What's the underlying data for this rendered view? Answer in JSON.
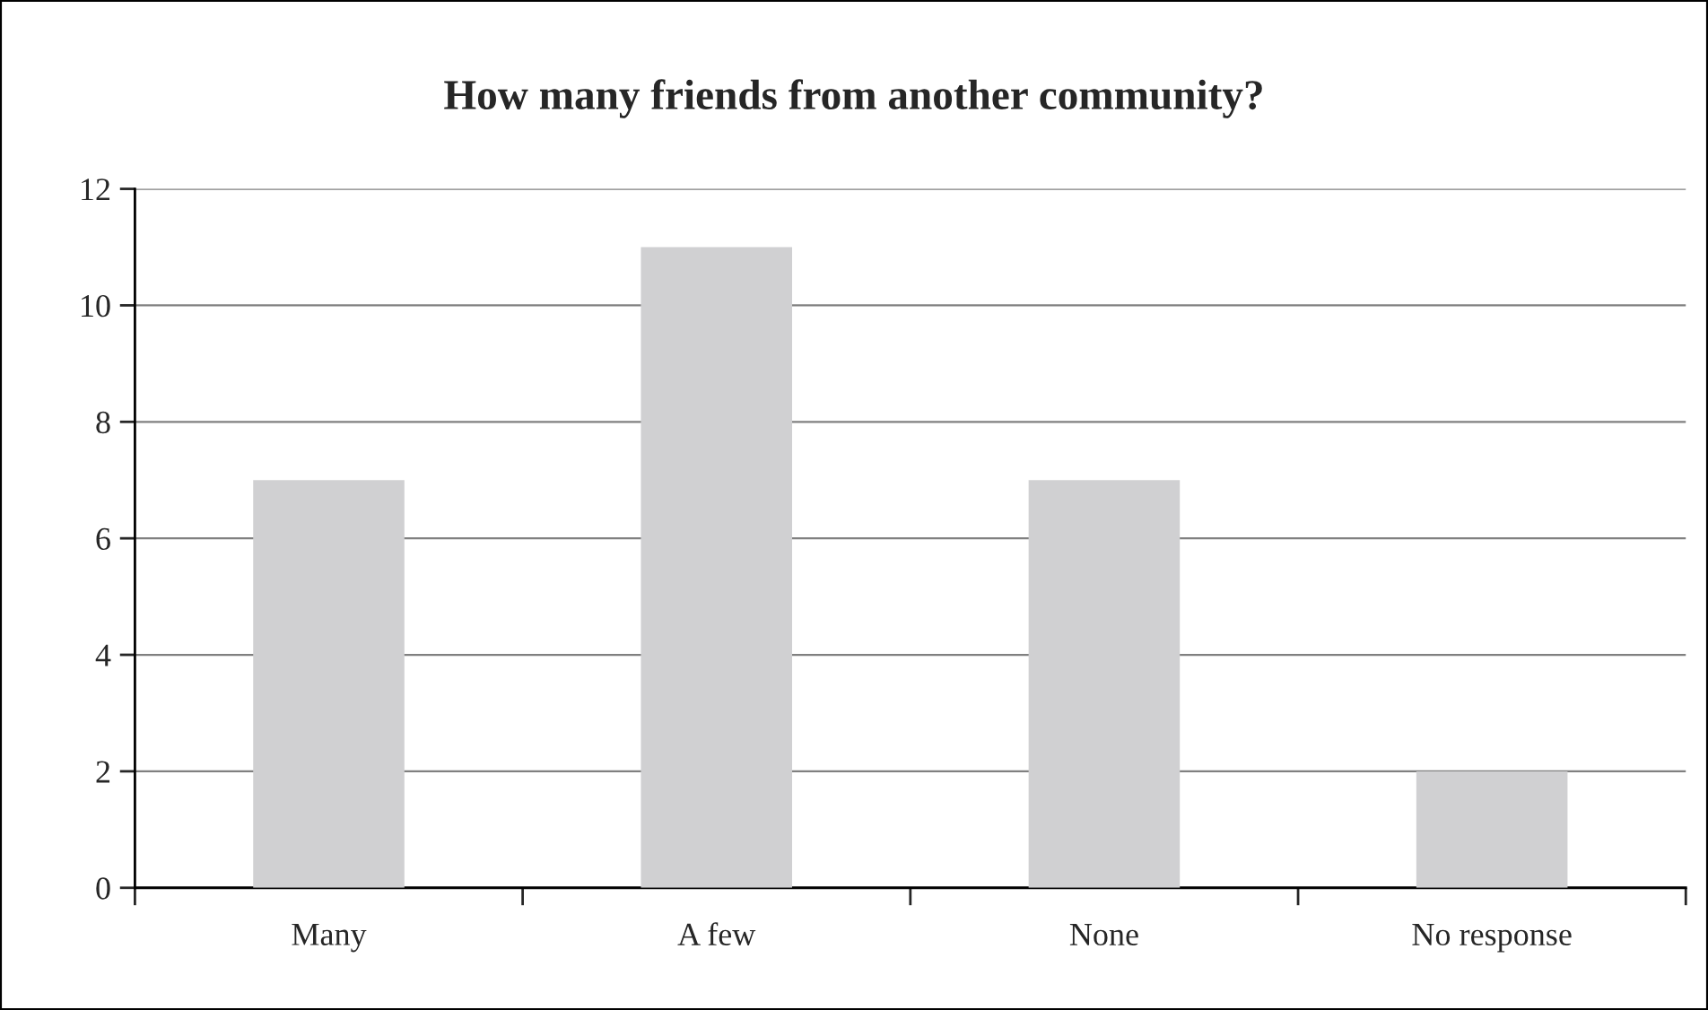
{
  "chart_data": {
    "type": "bar",
    "title": "How many friends from another community?",
    "categories": [
      "Many",
      "A few",
      "None",
      "No response"
    ],
    "values": [
      7,
      11,
      7,
      2
    ],
    "color": "#d0d0d2",
    "ylim": [
      0,
      12
    ],
    "yticks": [
      0,
      2,
      4,
      6,
      8,
      10,
      12
    ],
    "grid": "y"
  }
}
